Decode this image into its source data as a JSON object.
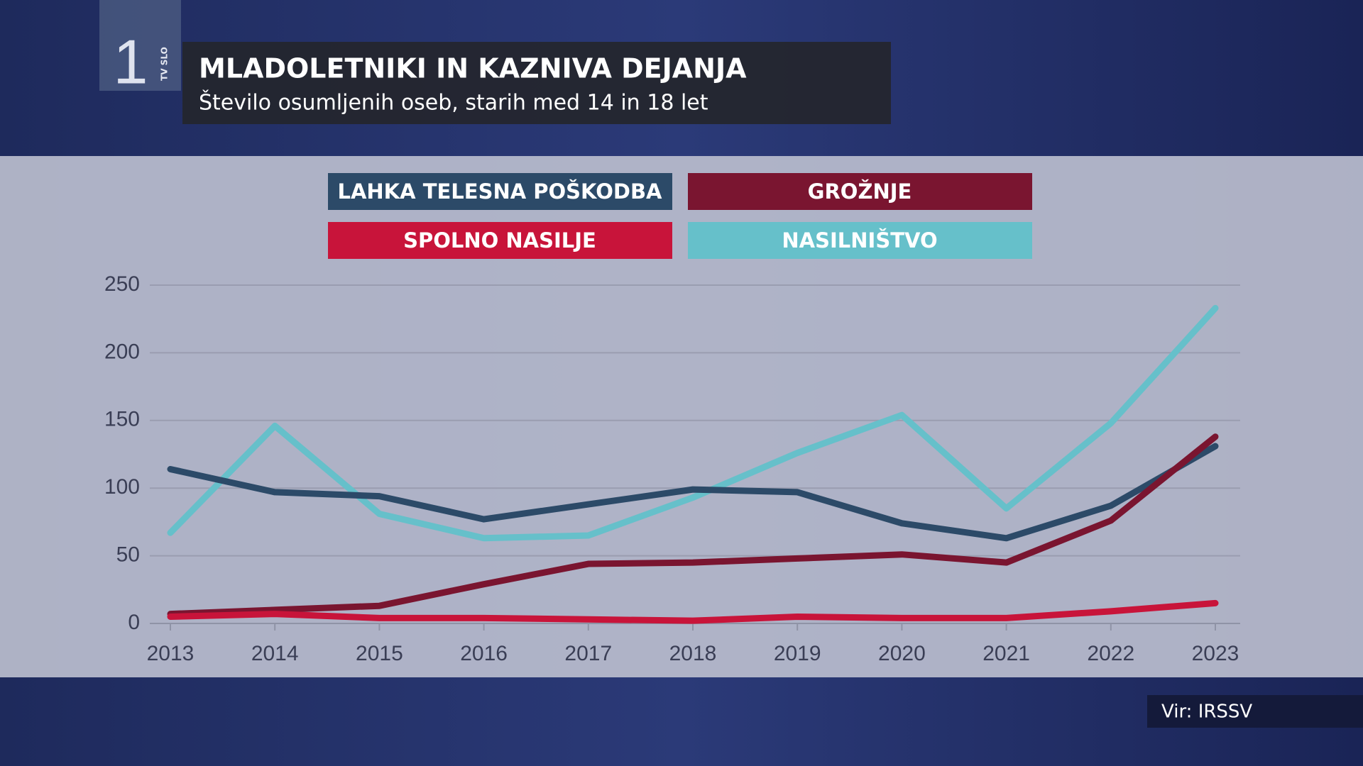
{
  "channel": {
    "number": "1",
    "name": "TV SLO"
  },
  "source": "Vir: IRSSV",
  "chart_data": {
    "type": "line",
    "title": "MLADOLETNIKI IN KAZNIVA DEJANJA",
    "subtitle": "Število osumljenih oseb, starih med 14 in 18 let",
    "categories": [
      "2013",
      "2014",
      "2015",
      "2016",
      "2017",
      "2018",
      "2019",
      "2020",
      "2021",
      "2022",
      "2023"
    ],
    "series": [
      {
        "name": "LAHKA TELESNA POŠKODBA",
        "color": "#2c4a68",
        "values": [
          114,
          97,
          94,
          77,
          88,
          99,
          97,
          74,
          63,
          87,
          131
        ]
      },
      {
        "name": "GROŽNJE",
        "color": "#7a1530",
        "values": [
          7,
          10,
          13,
          29,
          44,
          45,
          48,
          51,
          45,
          76,
          138
        ]
      },
      {
        "name": "SPOLNO NASILJE",
        "color": "#c8143a",
        "values": [
          5,
          7,
          4,
          4,
          3,
          2,
          5,
          4,
          4,
          9,
          15
        ]
      },
      {
        "name": "NASILNIŠTVO",
        "color": "#66c0ca",
        "values": [
          67,
          146,
          81,
          63,
          65,
          93,
          126,
          154,
          85,
          148,
          233
        ]
      }
    ],
    "ylim": [
      0,
      250
    ],
    "yticks": [
      0,
      50,
      100,
      150,
      200,
      250
    ],
    "grid": true
  }
}
